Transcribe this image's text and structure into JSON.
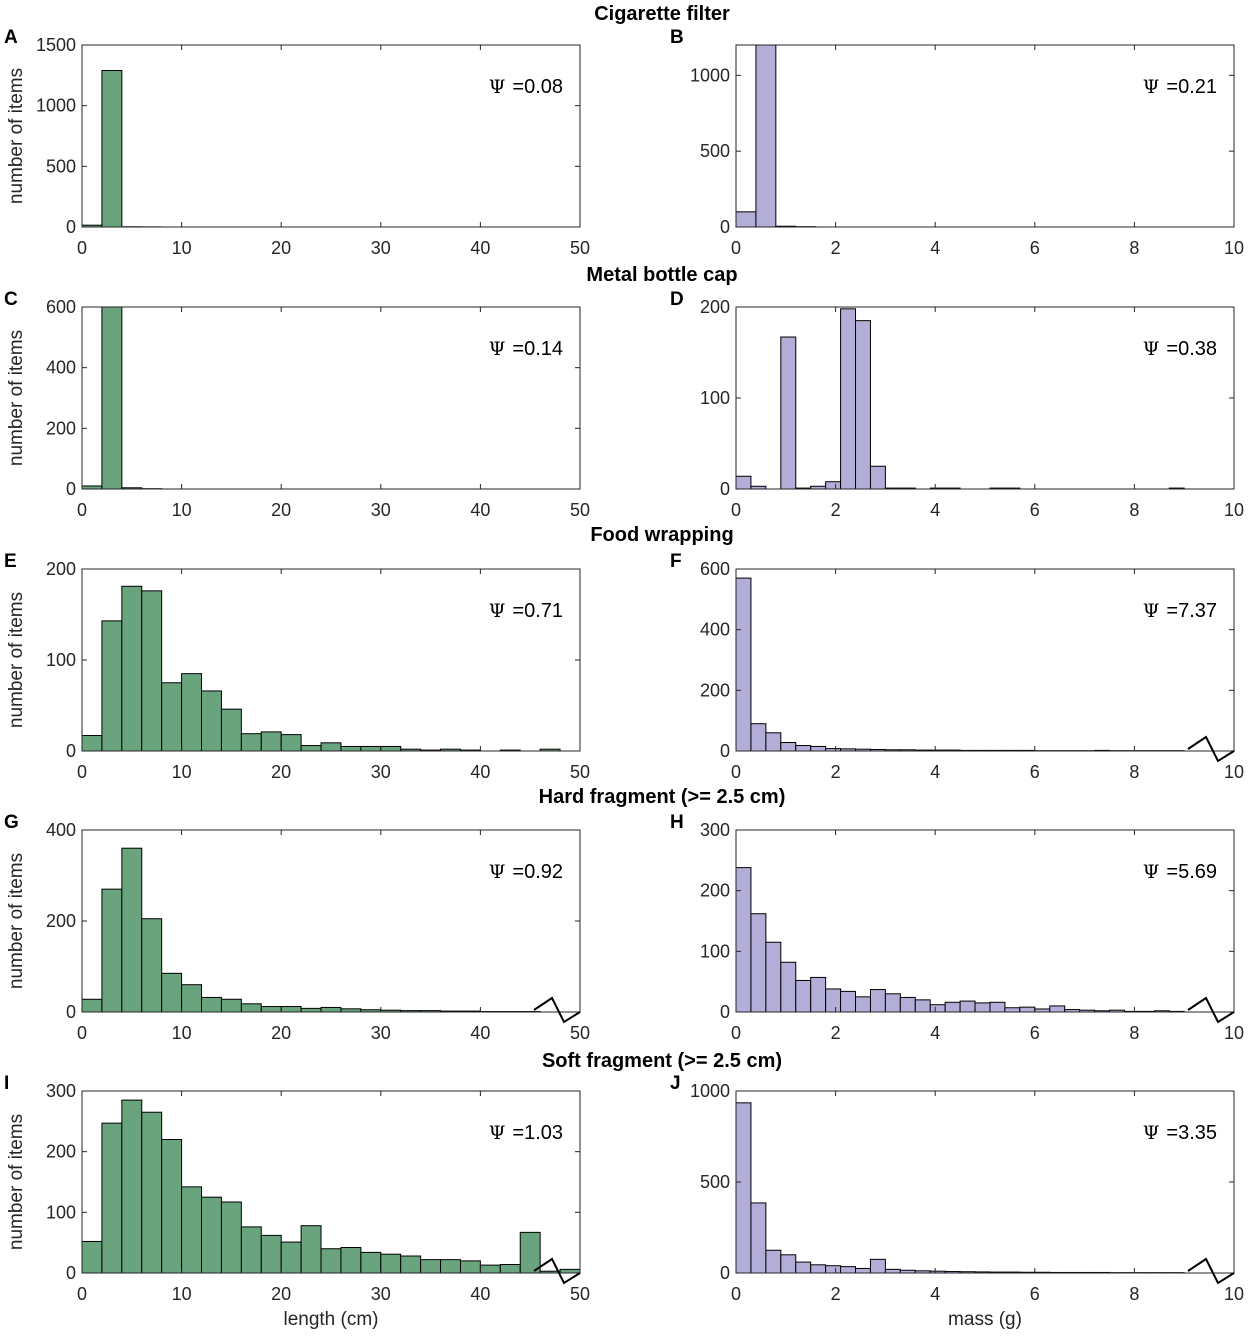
{
  "figure": {
    "row_titles": [
      "Cigarette filter",
      "Metal bottle cap",
      "Food wrapping",
      "Hard fragment  (>= 2.5 cm)",
      "Soft fragment (>= 2.5 cm)"
    ],
    "psi_symbol": "Ψ",
    "colors": {
      "length_bars": "#6aa47e",
      "mass_bars": "#b2aed8",
      "axes": "#262626"
    }
  },
  "chart_data": [
    {
      "panel": "A",
      "row": 0,
      "col": 0,
      "type": "bar",
      "title": "Cigarette filter",
      "xlabel": "",
      "ylabel": "number of items",
      "xlim": [
        0,
        50
      ],
      "ylim": [
        0,
        1500
      ],
      "xticks": [
        0,
        10,
        20,
        30,
        40,
        50
      ],
      "yticks": [
        0,
        500,
        1000,
        1500
      ],
      "bin_width": 2,
      "bin_start": 0,
      "values": [
        15,
        1290,
        2,
        1,
        0,
        0,
        0,
        0,
        0,
        0,
        0,
        0,
        0,
        0,
        0,
        0,
        0,
        0,
        0,
        0,
        0,
        0,
        0,
        0,
        0
      ],
      "psi_label": "=0.08",
      "axis_break": false
    },
    {
      "panel": "B",
      "row": 0,
      "col": 1,
      "type": "bar",
      "xlabel": "",
      "ylabel": "",
      "xlim": [
        0,
        10
      ],
      "ylim": [
        0,
        1200
      ],
      "xticks": [
        0,
        2,
        4,
        6,
        8,
        10
      ],
      "yticks": [
        0,
        500,
        1000
      ],
      "bin_width": 0.4,
      "bin_start": 0,
      "values": [
        100,
        1200,
        5,
        2,
        0,
        0,
        0,
        0,
        0,
        0,
        0,
        0,
        0,
        0,
        0,
        0,
        0,
        0,
        0,
        0,
        0,
        0,
        0,
        0,
        0
      ],
      "psi_label": "=0.21",
      "axis_break": false
    },
    {
      "panel": "C",
      "row": 1,
      "col": 0,
      "type": "bar",
      "title": "Metal bottle cap",
      "xlabel": "",
      "ylabel": "number of items",
      "xlim": [
        0,
        50
      ],
      "ylim": [
        0,
        600
      ],
      "xticks": [
        0,
        10,
        20,
        30,
        40,
        50
      ],
      "yticks": [
        0,
        200,
        400,
        600
      ],
      "bin_width": 2,
      "bin_start": 0,
      "values": [
        10,
        600,
        4,
        1,
        0,
        0,
        0,
        0,
        0,
        0,
        0,
        0,
        0,
        0,
        0,
        0,
        0,
        0,
        0,
        0,
        0,
        0,
        0,
        0,
        0
      ],
      "psi_label": "=0.14",
      "axis_break": false
    },
    {
      "panel": "D",
      "row": 1,
      "col": 1,
      "type": "bar",
      "xlabel": "",
      "ylabel": "",
      "xlim": [
        0,
        10
      ],
      "ylim": [
        0,
        200
      ],
      "xticks": [
        0,
        2,
        4,
        6,
        8,
        10
      ],
      "yticks": [
        0,
        100,
        200
      ],
      "bin_width": 0.3,
      "bin_start": 0,
      "values": [
        14,
        3,
        0,
        167,
        1,
        3,
        8,
        198,
        185,
        25,
        1,
        1,
        0,
        1,
        1,
        0,
        0,
        1,
        1,
        0,
        0,
        0,
        0,
        0,
        0,
        0,
        0,
        0,
        0,
        1,
        0,
        0,
        0,
        0
      ],
      "psi_label": "=0.38",
      "axis_break": false
    },
    {
      "panel": "E",
      "row": 2,
      "col": 0,
      "type": "bar",
      "title": "Food wrapping",
      "xlabel": "",
      "ylabel": "number of items",
      "xlim": [
        0,
        50
      ],
      "ylim": [
        0,
        200
      ],
      "xticks": [
        0,
        10,
        20,
        30,
        40,
        50
      ],
      "yticks": [
        0,
        100,
        200
      ],
      "bin_width": 2,
      "bin_start": 0,
      "values": [
        17,
        143,
        181,
        176,
        75,
        85,
        66,
        46,
        19,
        21,
        18,
        6,
        9,
        5,
        5,
        5,
        2,
        1,
        2,
        1,
        0,
        1,
        0,
        2,
        0
      ],
      "psi_label": "=0.71",
      "axis_break": false
    },
    {
      "panel": "F",
      "row": 2,
      "col": 1,
      "type": "bar",
      "xlabel": "",
      "ylabel": "",
      "xlim": [
        0,
        10
      ],
      "ylim": [
        0,
        600
      ],
      "xticks": [
        0,
        2,
        4,
        6,
        8,
        10
      ],
      "yticks": [
        0,
        200,
        400,
        600
      ],
      "bin_width": 0.3,
      "bin_start": 0,
      "values": [
        570,
        90,
        60,
        28,
        18,
        15,
        8,
        7,
        6,
        5,
        4,
        4,
        3,
        3,
        3,
        2,
        2,
        2,
        2,
        2,
        1,
        1,
        1,
        1,
        2,
        1,
        1,
        1,
        1,
        1
      ],
      "psi_label": "=7.37",
      "axis_break": true
    },
    {
      "panel": "G",
      "row": 3,
      "col": 0,
      "type": "bar",
      "title": "Hard fragment  (>= 2.5 cm)",
      "xlabel": "",
      "ylabel": "number of items",
      "xlim": [
        0,
        50
      ],
      "ylim": [
        0,
        400
      ],
      "xticks": [
        0,
        10,
        20,
        30,
        40,
        50
      ],
      "yticks": [
        0,
        200,
        400
      ],
      "bin_width": 2,
      "bin_start": 0,
      "values": [
        28,
        270,
        360,
        205,
        85,
        60,
        32,
        28,
        18,
        12,
        12,
        8,
        10,
        7,
        5,
        4,
        3,
        3,
        2,
        2,
        1,
        1,
        1,
        0,
        0
      ],
      "psi_label": "=0.92",
      "axis_break": true
    },
    {
      "panel": "H",
      "row": 3,
      "col": 1,
      "type": "bar",
      "xlabel": "",
      "ylabel": "",
      "xlim": [
        0,
        10
      ],
      "ylim": [
        0,
        300
      ],
      "xticks": [
        0,
        2,
        4,
        6,
        8,
        10
      ],
      "yticks": [
        0,
        100,
        200,
        300
      ],
      "bin_width": 0.3,
      "bin_start": 0,
      "values": [
        238,
        162,
        115,
        82,
        52,
        57,
        38,
        34,
        25,
        37,
        30,
        24,
        20,
        12,
        16,
        18,
        15,
        16,
        7,
        8,
        5,
        10,
        4,
        3,
        2,
        3,
        1,
        1,
        2,
        1
      ],
      "psi_label": "=5.69",
      "axis_break": true
    },
    {
      "panel": "I",
      "row": 4,
      "col": 0,
      "type": "bar",
      "title": "Soft fragment (>= 2.5 cm)",
      "xlabel": "length (cm)",
      "ylabel": "number of items",
      "xlim": [
        0,
        50
      ],
      "ylim": [
        0,
        300
      ],
      "xticks": [
        0,
        10,
        20,
        30,
        40,
        50
      ],
      "yticks": [
        0,
        100,
        200,
        300
      ],
      "bin_width": 2,
      "bin_start": 0,
      "values": [
        52,
        247,
        285,
        265,
        220,
        142,
        125,
        117,
        76,
        62,
        51,
        78,
        40,
        42,
        34,
        31,
        28,
        22,
        22,
        20,
        13,
        14,
        67,
        3,
        6
      ],
      "psi_label": "=1.03",
      "axis_break": true
    },
    {
      "panel": "J",
      "row": 4,
      "col": 1,
      "type": "bar",
      "xlabel": "mass (g)",
      "ylabel": "",
      "xlim": [
        0,
        10
      ],
      "ylim": [
        0,
        1000
      ],
      "xticks": [
        0,
        2,
        4,
        6,
        8,
        10
      ],
      "yticks": [
        0,
        500,
        1000
      ],
      "bin_width": 0.3,
      "bin_start": 0,
      "values": [
        935,
        385,
        125,
        100,
        60,
        45,
        40,
        35,
        25,
        75,
        20,
        15,
        12,
        10,
        8,
        7,
        6,
        5,
        5,
        4,
        4,
        3,
        3,
        3,
        3,
        2,
        2,
        2,
        2,
        2
      ],
      "psi_label": "=3.35",
      "axis_break": true
    }
  ]
}
